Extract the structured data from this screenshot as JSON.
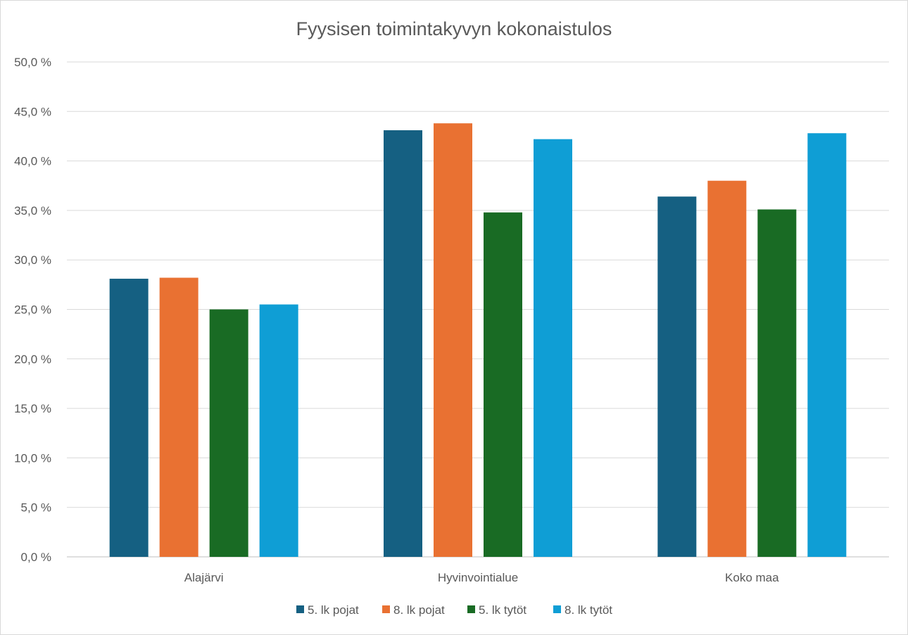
{
  "chart_data": {
    "type": "bar",
    "title": "Fyysisen toimintakyvyn kokonaistulos",
    "categories": [
      "Alajärvi",
      "Hyvinvointialue",
      "Koko maa"
    ],
    "series": [
      {
        "name": "5. lk pojat",
        "color": "#156082",
        "values": [
          28.1,
          43.1,
          36.4
        ]
      },
      {
        "name": "8. lk pojat",
        "color": "#E97132",
        "values": [
          28.2,
          43.8,
          38.0
        ]
      },
      {
        "name": "5. lk tytöt",
        "color": "#196B24",
        "values": [
          25.0,
          34.8,
          35.1
        ]
      },
      {
        "name": "8. lk tytöt",
        "color": "#0F9ED5",
        "values": [
          25.5,
          42.2,
          42.8
        ]
      }
    ],
    "ylim": [
      0,
      50
    ],
    "yticks": [
      "0,0 %",
      "5,0 %",
      "10,0 %",
      "15,0 %",
      "20,0 %",
      "25,0 %",
      "30,0 %",
      "35,0 %",
      "40,0 %",
      "45,0 %",
      "50,0 %"
    ],
    "ystep": 5,
    "grid": true,
    "legend": "bottom",
    "xlabel": "",
    "ylabel": ""
  }
}
